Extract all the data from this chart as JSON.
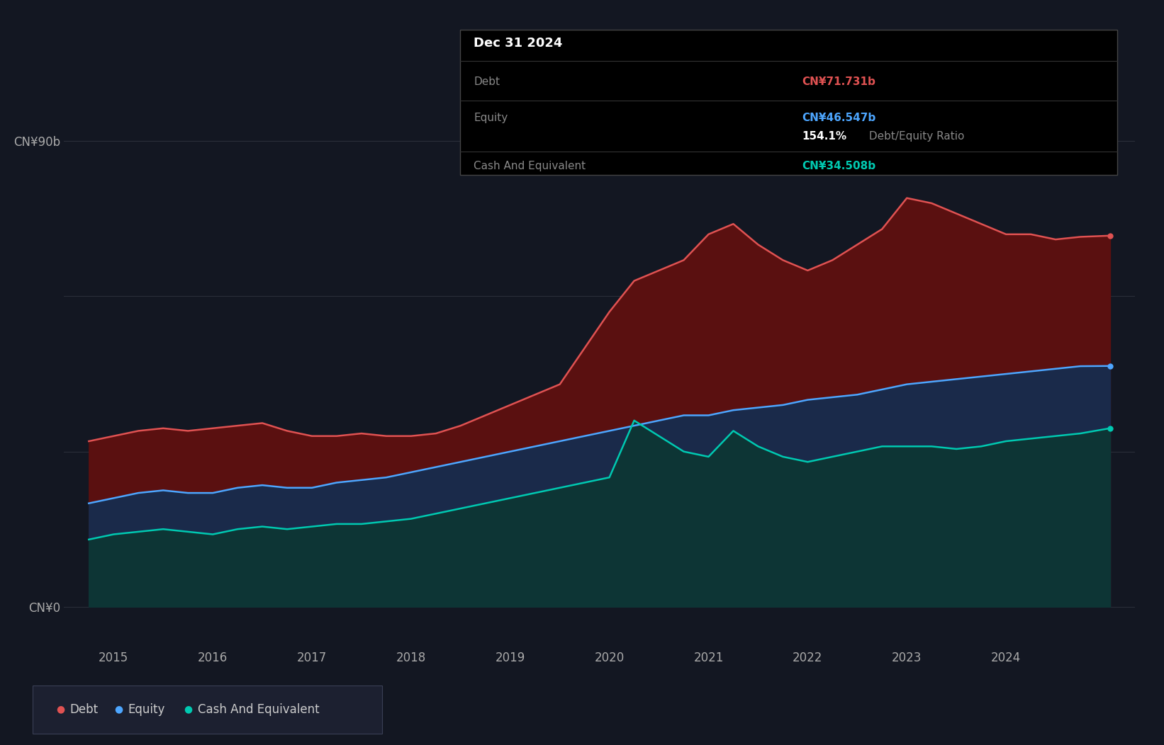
{
  "bg_color": "#131722",
  "plot_bg_color": "#131722",
  "grid_color": "#2a2e39",
  "debt_color": "#e05252",
  "equity_color": "#4da6ff",
  "cash_color": "#00c9b1",
  "debt_fill_color": "#5a1010",
  "equity_fill_color": "#1a2a4a",
  "cash_fill_color": "#0d3535",
  "tooltip_bg": "#000000",
  "tooltip_border": "#444444",
  "tooltip_date": "Dec 31 2024",
  "tooltip_debt_label": "Debt",
  "tooltip_debt_value": "CN¥71.731b",
  "tooltip_equity_label": "Equity",
  "tooltip_equity_value": "CN¥46.547b",
  "tooltip_ratio": "154.1%",
  "tooltip_ratio_text": " Debt/Equity Ratio",
  "tooltip_cash_label": "Cash And Equivalent",
  "tooltip_cash_value": "CN¥34.508b",
  "legend_debt": "Debt",
  "legend_equity": "Equity",
  "legend_cash": "Cash And Equivalent",
  "ylabel_90b": "CN¥90b",
  "ylabel_0": "CN¥0",
  "xmin": 2014.5,
  "xmax": 2025.3,
  "ymin": -8,
  "ymax": 100,
  "grid_lines": [
    0,
    30,
    60,
    90
  ],
  "years": [
    2014.75,
    2015.0,
    2015.25,
    2015.5,
    2015.75,
    2016.0,
    2016.25,
    2016.5,
    2016.75,
    2017.0,
    2017.25,
    2017.5,
    2017.75,
    2018.0,
    2018.25,
    2018.5,
    2018.75,
    2019.0,
    2019.25,
    2019.5,
    2019.75,
    2020.0,
    2020.25,
    2020.5,
    2020.75,
    2021.0,
    2021.25,
    2021.5,
    2021.75,
    2022.0,
    2022.25,
    2022.5,
    2022.75,
    2023.0,
    2023.25,
    2023.5,
    2023.75,
    2024.0,
    2024.25,
    2024.5,
    2024.75,
    2025.05
  ],
  "debt": [
    32,
    33,
    34,
    34.5,
    34,
    34.5,
    35,
    35.5,
    34,
    33,
    33,
    33.5,
    33,
    33,
    33.5,
    35,
    37,
    39,
    41,
    43,
    50,
    57,
    63,
    65,
    67,
    72,
    74,
    70,
    67,
    65,
    67,
    70,
    73,
    79,
    78,
    76,
    74,
    72,
    72,
    71,
    71.5,
    71.731
  ],
  "equity": [
    20,
    21,
    22,
    22.5,
    22,
    22,
    23,
    23.5,
    23,
    23,
    24,
    24.5,
    25,
    26,
    27,
    28,
    29,
    30,
    31,
    32,
    33,
    34,
    35,
    36,
    37,
    37,
    38,
    38.5,
    39,
    40,
    40.5,
    41,
    42,
    43,
    43.5,
    44,
    44.5,
    45,
    45.5,
    46,
    46.5,
    46.547
  ],
  "cash": [
    13,
    14,
    14.5,
    15,
    14.5,
    14,
    15,
    15.5,
    15,
    15.5,
    16,
    16,
    16.5,
    17,
    18,
    19,
    20,
    21,
    22,
    23,
    24,
    25,
    36,
    33,
    30,
    29,
    34,
    31,
    29,
    28,
    29,
    30,
    31,
    31,
    31,
    30.5,
    31,
    32,
    32.5,
    33,
    33.5,
    34.508
  ],
  "xticks": [
    2015,
    2016,
    2017,
    2018,
    2019,
    2020,
    2021,
    2022,
    2023,
    2024
  ],
  "xtick_labels": [
    "2015",
    "2016",
    "2017",
    "2018",
    "2019",
    "2020",
    "2021",
    "2022",
    "2023",
    "2024"
  ]
}
